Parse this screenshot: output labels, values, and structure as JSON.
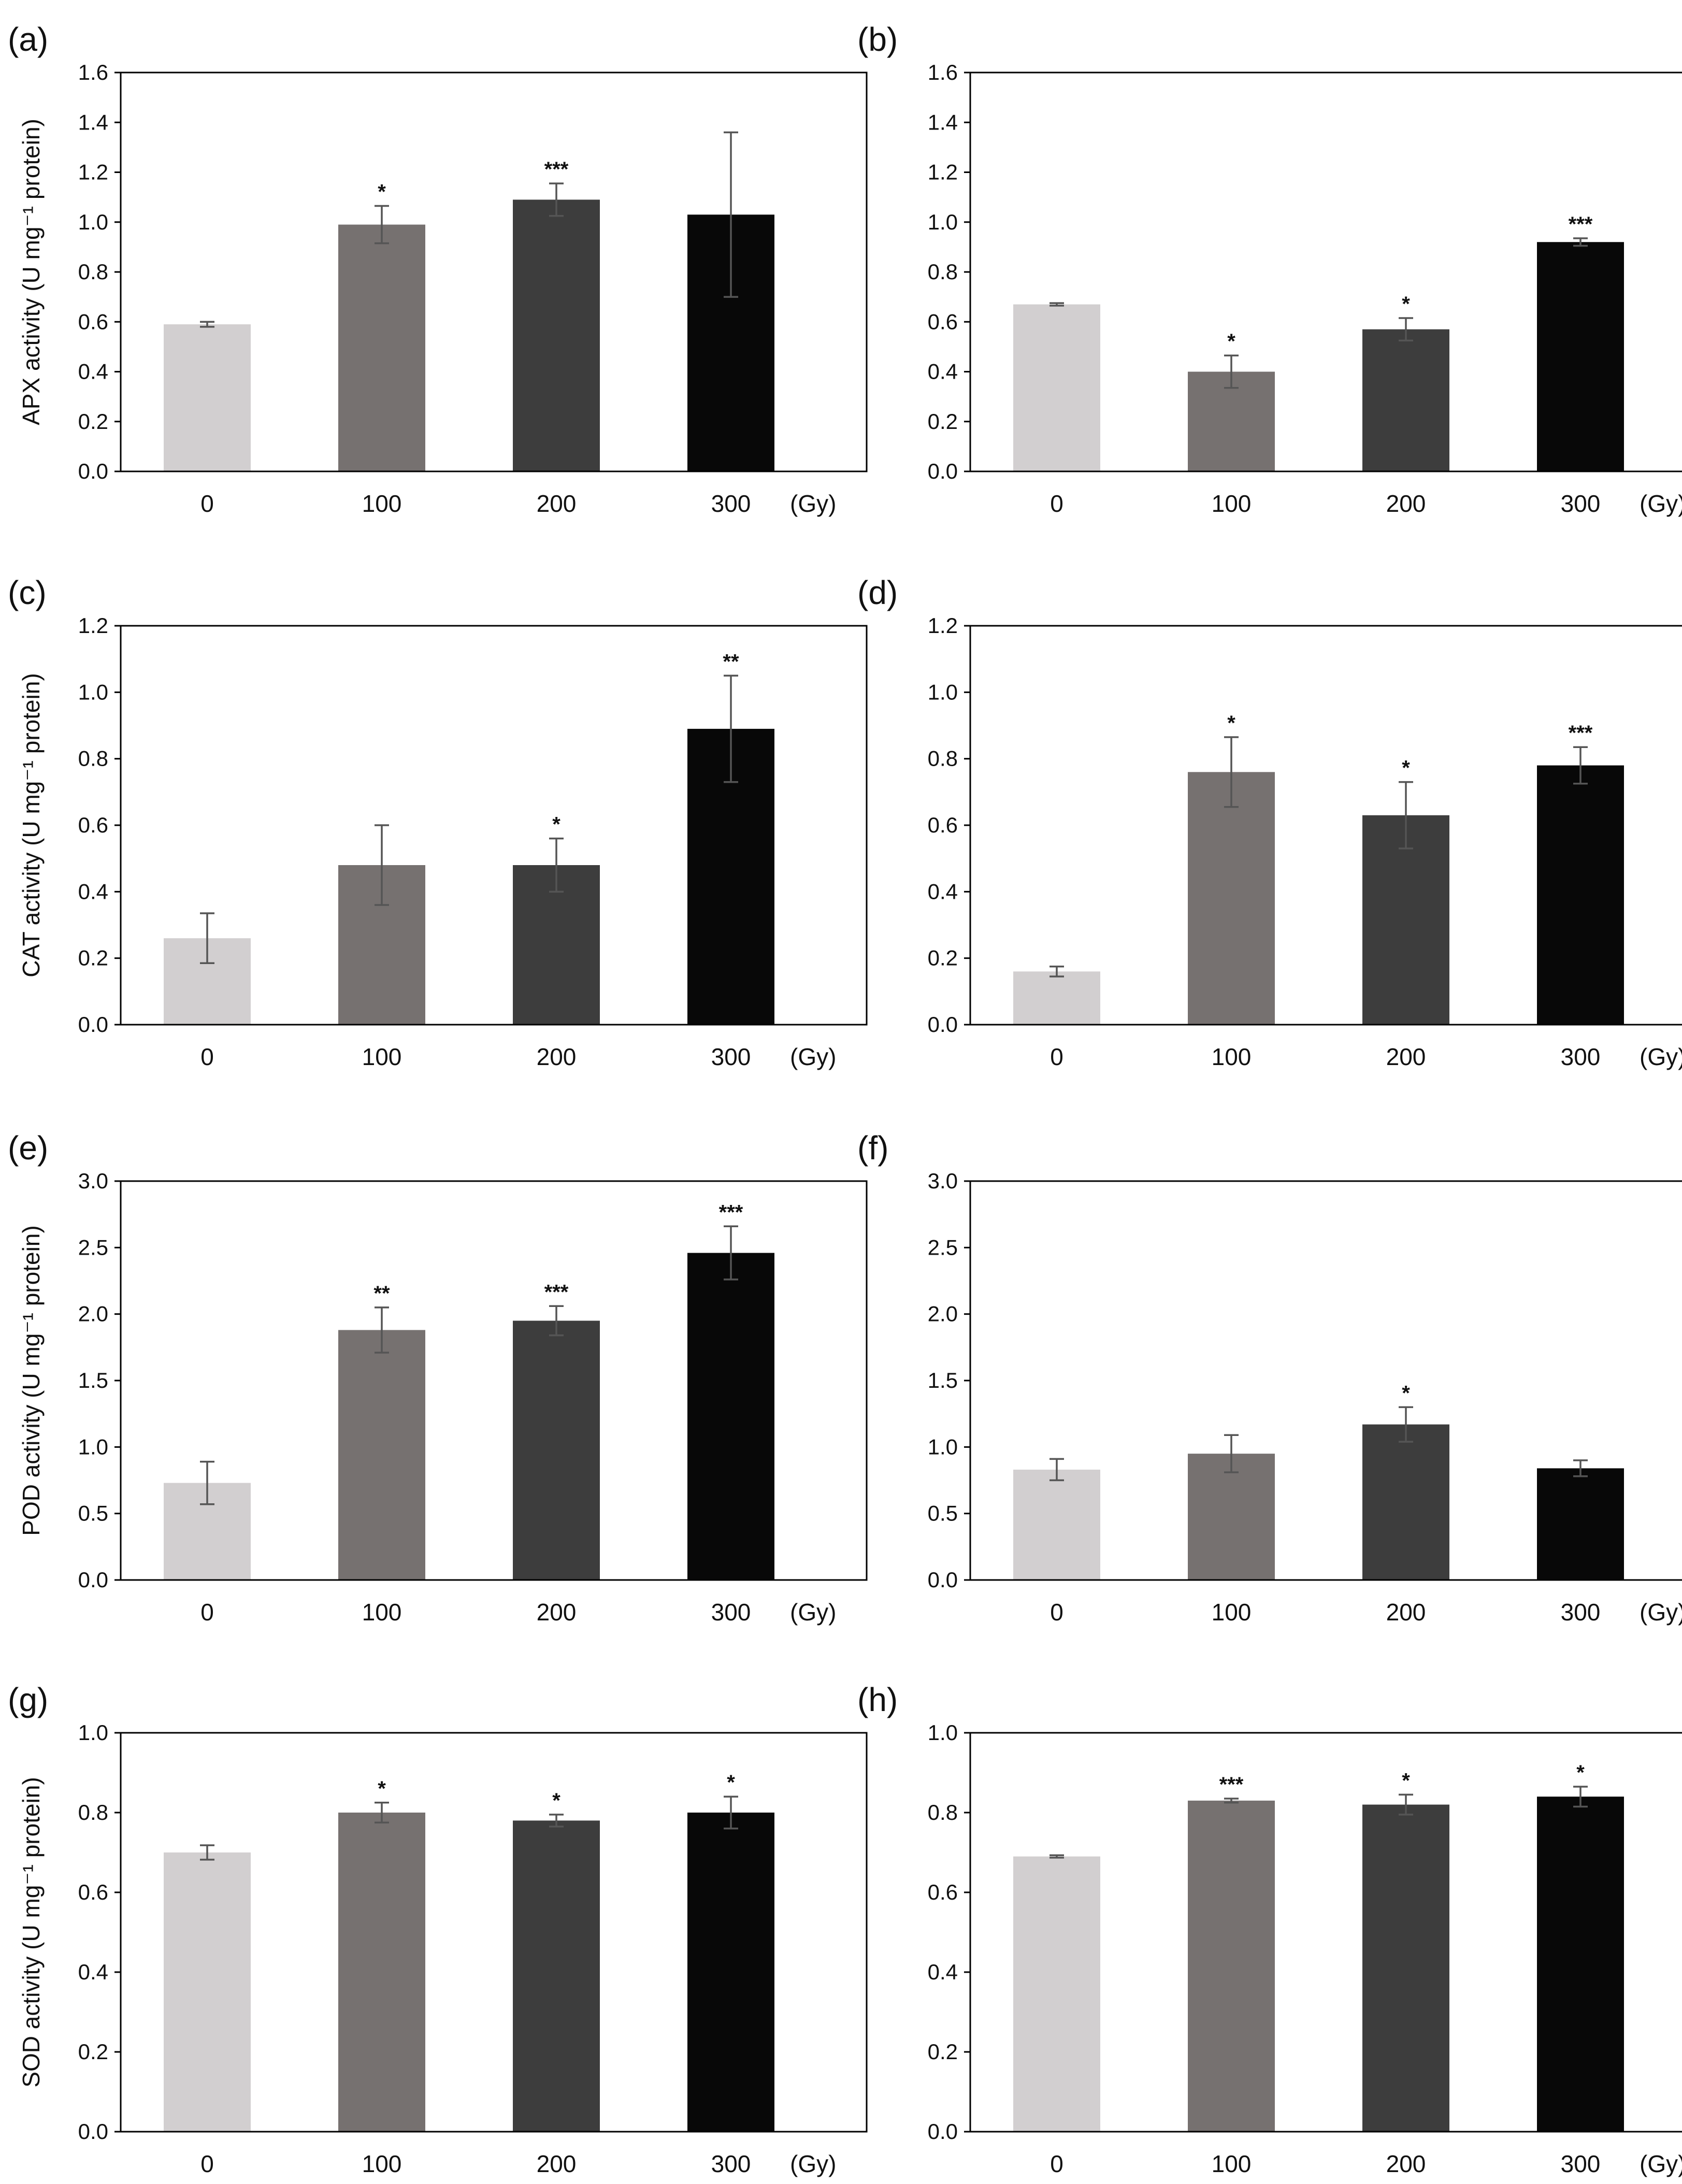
{
  "figure": {
    "colors": [
      "#d2cfd0",
      "#767170",
      "#3d3d3d",
      "#080808"
    ]
  },
  "chart_data": [
    {
      "panel": "(a)",
      "type": "bar",
      "categories": [
        "0",
        "100",
        "200",
        "300"
      ],
      "unit": "(Gy)",
      "ylabel": "APX activity (U mg⁻¹ protein)",
      "ylim": [
        0,
        1.6
      ],
      "yticks": [
        "0.0",
        "0.2",
        "0.4",
        "0.6",
        "0.8",
        "1.0",
        "1.2",
        "1.4",
        "1.6"
      ],
      "values": [
        0.59,
        0.99,
        1.09,
        1.03
      ],
      "errors": [
        0.01,
        0.075,
        0.065,
        0.33
      ],
      "significance": [
        "",
        "*",
        "***",
        ""
      ]
    },
    {
      "panel": "(b)",
      "type": "bar",
      "categories": [
        "0",
        "100",
        "200",
        "300"
      ],
      "unit": "(Gy)",
      "ylabel": "",
      "ylim": [
        0,
        1.6
      ],
      "yticks": [
        "0.0",
        "0.2",
        "0.4",
        "0.6",
        "0.8",
        "1.0",
        "1.2",
        "1.4",
        "1.6"
      ],
      "values": [
        0.67,
        0.4,
        0.57,
        0.92
      ],
      "errors": [
        0.005,
        0.065,
        0.045,
        0.015
      ],
      "significance": [
        "",
        "*",
        "*",
        "***"
      ]
    },
    {
      "panel": "(c)",
      "type": "bar",
      "categories": [
        "0",
        "100",
        "200",
        "300"
      ],
      "unit": "(Gy)",
      "ylabel": "CAT activity (U mg⁻¹ protein)",
      "ylim": [
        0,
        1.2
      ],
      "yticks": [
        "0.0",
        "0.2",
        "0.4",
        "0.6",
        "0.8",
        "1.0",
        "1.2"
      ],
      "values": [
        0.26,
        0.48,
        0.48,
        0.89
      ],
      "errors": [
        0.075,
        0.12,
        0.08,
        0.16
      ],
      "significance": [
        "",
        "",
        "*",
        "**"
      ]
    },
    {
      "panel": "(d)",
      "type": "bar",
      "categories": [
        "0",
        "100",
        "200",
        "300"
      ],
      "unit": "(Gy)",
      "ylabel": "",
      "ylim": [
        0,
        1.2
      ],
      "yticks": [
        "0.0",
        "0.2",
        "0.4",
        "0.6",
        "0.8",
        "1.0",
        "1.2"
      ],
      "values": [
        0.16,
        0.76,
        0.63,
        0.78
      ],
      "errors": [
        0.015,
        0.105,
        0.1,
        0.055
      ],
      "significance": [
        "",
        "*",
        "*",
        "***"
      ]
    },
    {
      "panel": "(e)",
      "type": "bar",
      "categories": [
        "0",
        "100",
        "200",
        "300"
      ],
      "unit": "(Gy)",
      "ylabel": "POD activity (U mg⁻¹ protein)",
      "ylim": [
        0,
        3.0
      ],
      "yticks": [
        "0.0",
        "0.5",
        "1.0",
        "1.5",
        "2.0",
        "2.5",
        "3.0"
      ],
      "values": [
        0.73,
        1.88,
        1.95,
        2.46
      ],
      "errors": [
        0.16,
        0.17,
        0.11,
        0.2
      ],
      "significance": [
        "",
        "**",
        "***",
        "***"
      ]
    },
    {
      "panel": "(f)",
      "type": "bar",
      "categories": [
        "0",
        "100",
        "200",
        "300"
      ],
      "unit": "(Gy)",
      "ylabel": "",
      "ylim": [
        0,
        3.0
      ],
      "yticks": [
        "0.0",
        "0.5",
        "1.0",
        "1.5",
        "2.0",
        "2.5",
        "3.0"
      ],
      "values": [
        0.83,
        0.95,
        1.17,
        0.84
      ],
      "errors": [
        0.08,
        0.14,
        0.13,
        0.06
      ],
      "significance": [
        "",
        "",
        "*",
        ""
      ]
    },
    {
      "panel": "(g)",
      "type": "bar",
      "categories": [
        "0",
        "100",
        "200",
        "300"
      ],
      "unit": "(Gy)",
      "ylabel": "SOD activity (U mg⁻¹ protein)",
      "ylim": [
        0,
        1.0
      ],
      "yticks": [
        "0.0",
        "0.2",
        "0.4",
        "0.6",
        "0.8",
        "1.0"
      ],
      "values": [
        0.7,
        0.8,
        0.78,
        0.8
      ],
      "errors": [
        0.018,
        0.025,
        0.015,
        0.04
      ],
      "significance": [
        "",
        "*",
        "*",
        "*"
      ]
    },
    {
      "panel": "(h)",
      "type": "bar",
      "categories": [
        "0",
        "100",
        "200",
        "300"
      ],
      "unit": "(Gy)",
      "ylabel": "",
      "ylim": [
        0,
        1.0
      ],
      "yticks": [
        "0.0",
        "0.2",
        "0.4",
        "0.6",
        "0.8",
        "1.0"
      ],
      "values": [
        0.69,
        0.83,
        0.82,
        0.84
      ],
      "errors": [
        0.003,
        0.005,
        0.025,
        0.025
      ],
      "significance": [
        "",
        "***",
        "*",
        "*"
      ]
    }
  ]
}
